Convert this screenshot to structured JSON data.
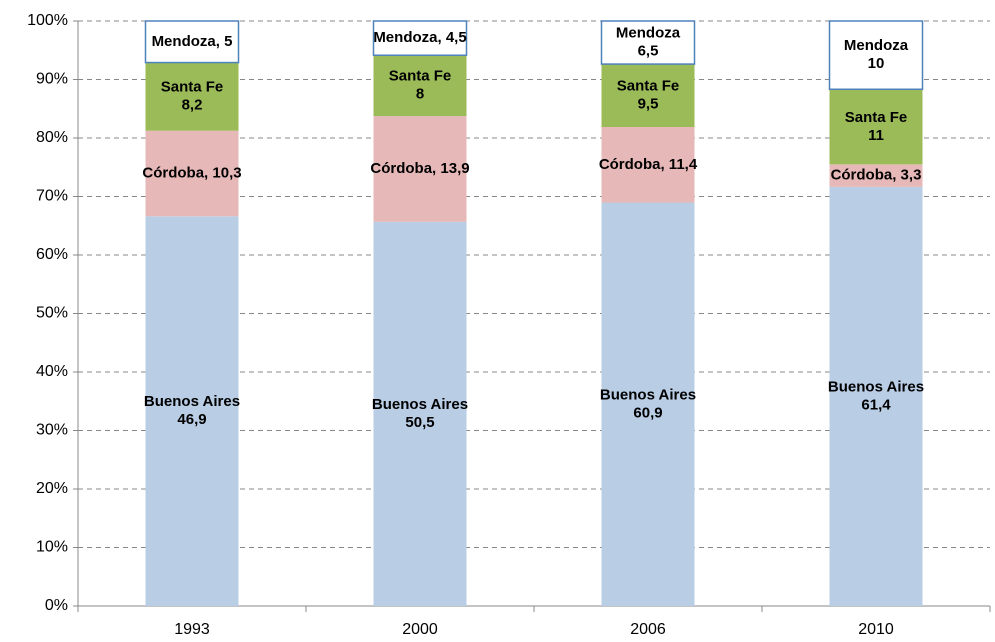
{
  "chart_data": {
    "type": "bar",
    "stacking": "percent",
    "categories": [
      "1993",
      "2000",
      "2006",
      "2010"
    ],
    "series": [
      {
        "color": "#b9cde5",
        "values": [
          46.9,
          50.5,
          60.9,
          61.4
        ],
        "value_labels": [
          "Buenos Aires\n46,9",
          "Buenos Aires\n50,5",
          "Buenos Aires\n60,9",
          "Buenos Aires\n61,4"
        ]
      },
      {
        "color": "#e6b9b8",
        "values": [
          10.3,
          13.9,
          11.4,
          3.3
        ],
        "value_labels": [
          "Córdoba, 10,3",
          "Córdoba, 13,9",
          "Córdoba, 11,4",
          "Córdoba, 3,3"
        ]
      },
      {
        "color": "#9bbb59",
        "values": [
          8.2,
          8,
          9.5,
          11
        ],
        "value_labels": [
          "Santa Fe\n8,2",
          "Santa Fe\n8",
          "Santa Fe\n9,5",
          "Santa Fe\n11"
        ]
      },
      {
        "color": "#ffffff",
        "stroke": "#4f81bd",
        "values": [
          5,
          4.5,
          6.5,
          10
        ],
        "value_labels": [
          "Mendoza, 5",
          "Mendoza, 4,5",
          "Mendoza\n6,5",
          "Mendoza\n10"
        ]
      }
    ],
    "ylim": [
      0,
      100
    ],
    "yticks": [
      {
        "value": 0,
        "label": "0%"
      },
      {
        "value": 10,
        "label": "10%"
      },
      {
        "value": 20,
        "label": "20%"
      },
      {
        "value": 30,
        "label": "30%"
      },
      {
        "value": 40,
        "label": "40%"
      },
      {
        "value": 50,
        "label": "50%"
      },
      {
        "value": 60,
        "label": "60%"
      },
      {
        "value": 70,
        "label": "70%"
      },
      {
        "value": 80,
        "label": "80%"
      },
      {
        "value": 90,
        "label": "90%"
      },
      {
        "value": 100,
        "label": "100%"
      }
    ],
    "grid": true
  }
}
